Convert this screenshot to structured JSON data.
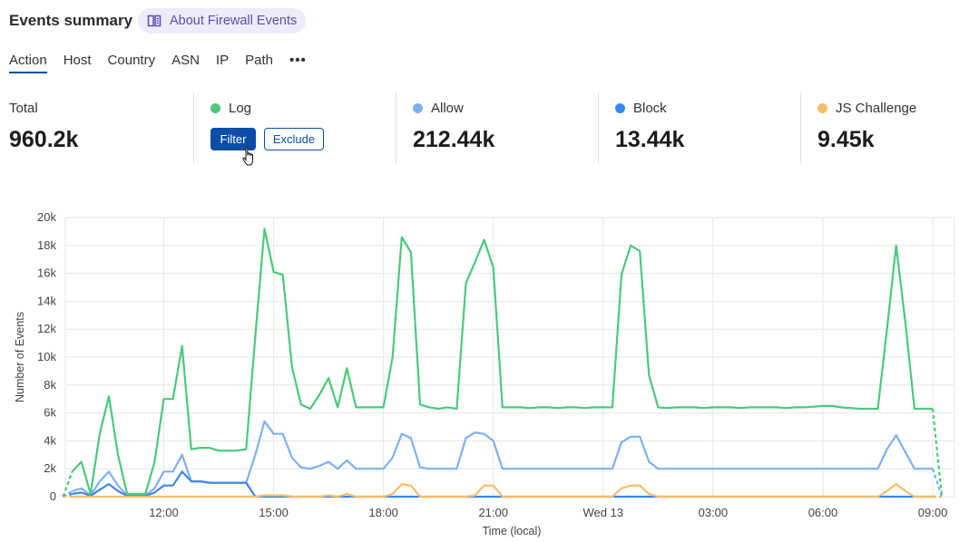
{
  "header": {
    "title": "Events summary",
    "about_label": "About Firewall Events",
    "about_icon": "book-icon"
  },
  "tabs": [
    {
      "label": "Action",
      "active": true
    },
    {
      "label": "Host"
    },
    {
      "label": "Country"
    },
    {
      "label": "ASN"
    },
    {
      "label": "IP"
    },
    {
      "label": "Path"
    },
    {
      "label": "•••"
    }
  ],
  "stats": {
    "total": {
      "label": "Total",
      "value": "960.2k"
    },
    "log": {
      "label": "Log",
      "color": "#4cc97a",
      "filter_label": "Filter",
      "exclude_label": "Exclude"
    },
    "allow": {
      "label": "Allow",
      "value": "212.44k",
      "color": "#7eb0f2"
    },
    "block": {
      "label": "Block",
      "value": "13.44k",
      "color": "#3d86f0"
    },
    "js_challenge": {
      "label": "JS Challenge",
      "value": "9.45k",
      "color": "#f6bd6a"
    }
  },
  "chart_data": {
    "type": "line",
    "xlabel": "Time (local)",
    "ylabel": "Number of Events",
    "ylim": [
      0,
      20000
    ],
    "yticks": [
      "0",
      "2k",
      "4k",
      "6k",
      "8k",
      "10k",
      "12k",
      "14k",
      "16k",
      "18k",
      "20k"
    ],
    "xticks": [
      {
        "label": "12:00",
        "at": "12:00"
      },
      {
        "label": "15:00",
        "at": "15:00"
      },
      {
        "label": "18:00",
        "at": "18:00"
      },
      {
        "label": "21:00",
        "at": "21:00"
      },
      {
        "label": "Wed 13",
        "at": "00:00"
      },
      {
        "label": "03:00",
        "at": "03:00"
      },
      {
        "label": "06:00",
        "at": "06:00"
      },
      {
        "label": "09:00",
        "at": "09:00"
      }
    ],
    "grid": true,
    "x": [
      "09:15",
      "09:30",
      "09:45",
      "10:00",
      "10:15",
      "10:30",
      "10:45",
      "11:00",
      "11:15",
      "11:30",
      "11:45",
      "12:00",
      "12:15",
      "12:30",
      "12:45",
      "13:00",
      "13:15",
      "13:30",
      "13:45",
      "14:00",
      "14:15",
      "14:30",
      "14:45",
      "15:00",
      "15:15",
      "15:30",
      "15:45",
      "16:00",
      "16:15",
      "16:30",
      "16:45",
      "17:00",
      "17:15",
      "17:30",
      "17:45",
      "18:00",
      "18:15",
      "18:30",
      "18:45",
      "19:00",
      "19:15",
      "19:30",
      "19:45",
      "20:00",
      "20:15",
      "20:30",
      "20:45",
      "21:00",
      "21:15",
      "21:30",
      "21:45",
      "22:00",
      "22:15",
      "22:30",
      "22:45",
      "23:00",
      "23:15",
      "23:30",
      "23:45",
      "00:00",
      "00:15",
      "00:30",
      "00:45",
      "01:00",
      "01:15",
      "01:30",
      "01:45",
      "02:00",
      "02:15",
      "02:30",
      "02:45",
      "03:00",
      "03:15",
      "03:30",
      "03:45",
      "04:00",
      "04:15",
      "04:30",
      "04:45",
      "05:00",
      "05:15",
      "05:30",
      "05:45",
      "06:00",
      "06:15",
      "06:30",
      "06:45",
      "07:00",
      "07:15",
      "07:30",
      "07:45",
      "08:00",
      "08:15",
      "08:30",
      "08:45",
      "09:00",
      "09:15"
    ],
    "series": [
      {
        "name": "Allow",
        "color": "#7eb0f2",
        "values": [
          0,
          400,
          600,
          100,
          1100,
          1800,
          800,
          100,
          100,
          100,
          600,
          1800,
          1800,
          3000,
          1100,
          1100,
          1000,
          1000,
          1000,
          1000,
          1000,
          3000,
          5400,
          4500,
          4500,
          2800,
          2100,
          2000,
          2200,
          2500,
          2000,
          2600,
          2000,
          2000,
          2000,
          2000,
          2800,
          4500,
          4200,
          2100,
          2000,
          2000,
          2000,
          2000,
          4200,
          4600,
          4500,
          4000,
          2000,
          2000,
          2000,
          2000,
          2000,
          2000,
          2000,
          2000,
          2000,
          2000,
          2000,
          2000,
          2000,
          3900,
          4300,
          4300,
          2500,
          2000,
          2000,
          2000,
          2000,
          2000,
          2000,
          2000,
          2000,
          2000,
          2000,
          2000,
          2000,
          2000,
          2000,
          2000,
          2000,
          2000,
          2000,
          2000,
          2000,
          2000,
          2000,
          2000,
          2000,
          2000,
          3400,
          4400,
          3200,
          2000,
          2000,
          2000,
          0
        ]
      },
      {
        "name": "Block",
        "color": "#3d86f0",
        "values": [
          0,
          200,
          300,
          50,
          500,
          900,
          400,
          50,
          50,
          50,
          300,
          800,
          800,
          1800,
          1100,
          1100,
          1000,
          1000,
          1000,
          1000,
          1000,
          0,
          0,
          0,
          0,
          0,
          0,
          0,
          0,
          0,
          0,
          0,
          0,
          0,
          0,
          0,
          0,
          0,
          0,
          0,
          0,
          0,
          0,
          0,
          0,
          0,
          0,
          0,
          0,
          0,
          0,
          0,
          0,
          0,
          0,
          0,
          0,
          0,
          0,
          0,
          0,
          0,
          0,
          0,
          0,
          0,
          0,
          0,
          0,
          0,
          0,
          0,
          0,
          0,
          0,
          0,
          0,
          0,
          0,
          0,
          0,
          0,
          0,
          0,
          0,
          0,
          0,
          0,
          0,
          0,
          0,
          0,
          0,
          0,
          0,
          0,
          0
        ]
      },
      {
        "name": "JS Challenge",
        "color": "#f6bd6a",
        "values": [
          0,
          0,
          0,
          0,
          0,
          0,
          0,
          0,
          0,
          0,
          0,
          0,
          0,
          0,
          0,
          0,
          0,
          0,
          0,
          0,
          0,
          0,
          100,
          100,
          100,
          0,
          0,
          0,
          0,
          100,
          0,
          200,
          0,
          0,
          0,
          0,
          200,
          900,
          800,
          0,
          0,
          0,
          0,
          0,
          0,
          100,
          800,
          800,
          0,
          0,
          0,
          0,
          0,
          0,
          0,
          0,
          0,
          0,
          0,
          0,
          0,
          600,
          800,
          800,
          200,
          0,
          0,
          0,
          0,
          0,
          0,
          0,
          0,
          0,
          0,
          0,
          0,
          0,
          0,
          0,
          0,
          0,
          0,
          0,
          0,
          0,
          0,
          0,
          0,
          0,
          400,
          900,
          400,
          0,
          0,
          0,
          0
        ]
      },
      {
        "name": "Log",
        "color": "#4cc97a",
        "values": [
          0,
          1800,
          2500,
          200,
          4500,
          7200,
          3000,
          200,
          200,
          200,
          2500,
          7000,
          7000,
          10800,
          3400,
          3500,
          3500,
          3300,
          3300,
          3300,
          3400,
          11500,
          19200,
          16100,
          15900,
          9300,
          6600,
          6300,
          7300,
          8500,
          6400,
          9200,
          6400,
          6400,
          6400,
          6400,
          10000,
          18600,
          17500,
          6600,
          6400,
          6300,
          6400,
          6300,
          15300,
          16800,
          18400,
          16400,
          6400,
          6400,
          6400,
          6350,
          6400,
          6400,
          6350,
          6400,
          6400,
          6350,
          6400,
          6400,
          6400,
          15900,
          18000,
          17600,
          8700,
          6400,
          6350,
          6400,
          6400,
          6400,
          6350,
          6400,
          6400,
          6400,
          6350,
          6400,
          6400,
          6400,
          6400,
          6350,
          6400,
          6400,
          6450,
          6500,
          6500,
          6400,
          6350,
          6300,
          6300,
          6300,
          12000,
          18000,
          12500,
          6300,
          6300,
          6300,
          0
        ]
      }
    ]
  }
}
